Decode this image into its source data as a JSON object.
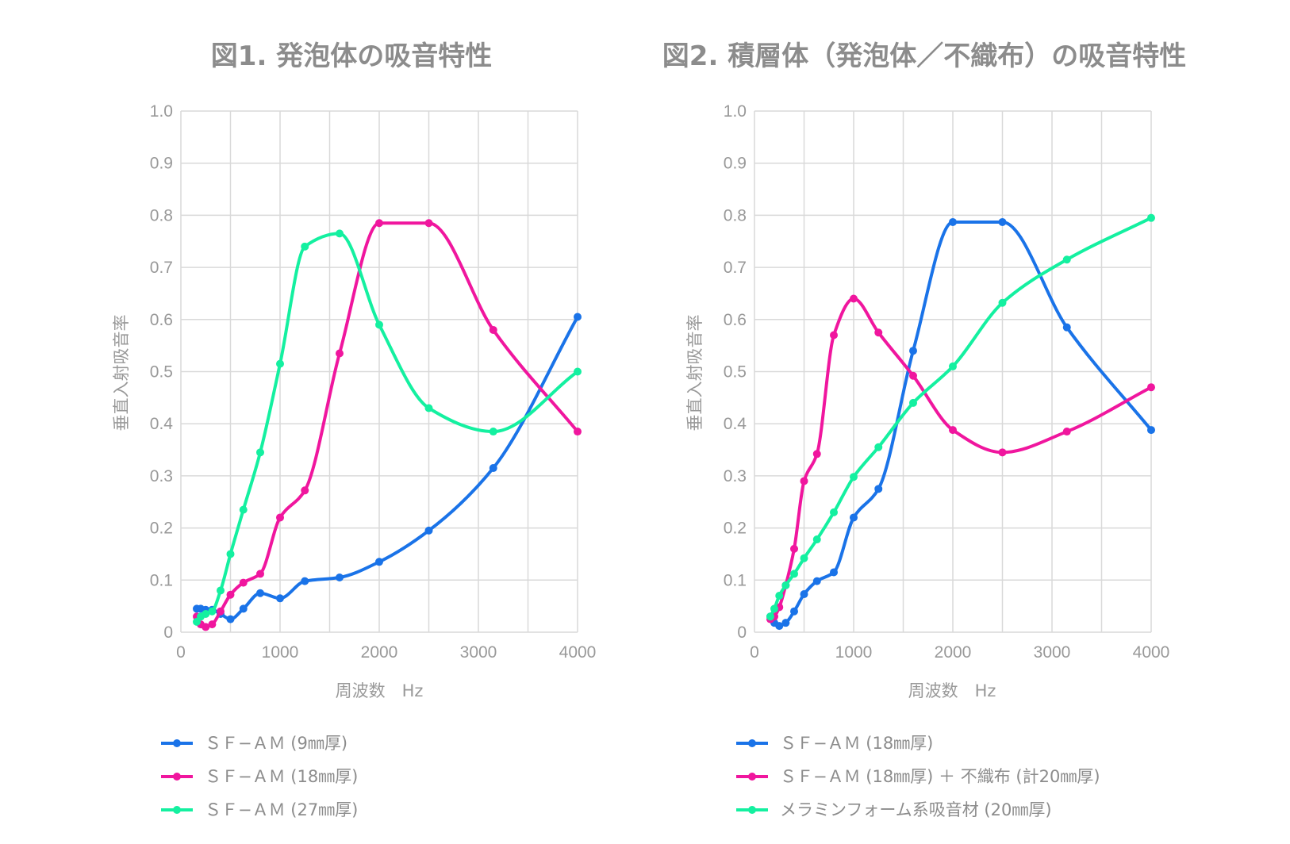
{
  "chart_data": [
    {
      "type": "line",
      "title": "図1. 発泡体の吸音特性",
      "xlabel": "周波数　Hz",
      "ylabel": "垂直入射吸音率",
      "xlim": [
        0,
        4000
      ],
      "ylim": [
        0,
        1.0
      ],
      "xticks": [
        "0",
        "1000",
        "2000",
        "3000",
        "4000"
      ],
      "yticks": [
        "0",
        "0.1",
        "0.2",
        "0.3",
        "0.4",
        "0.5",
        "0.6",
        "0.7",
        "0.8",
        "0.9",
        "1.0"
      ],
      "grid": true,
      "legend_position": "bottom",
      "series": [
        {
          "name": "ＳＦ−ＡＭ (9㎜厚)",
          "color": "#1a73e8",
          "x": [
            160,
            200,
            250,
            315,
            400,
            500,
            630,
            800,
            1000,
            1250,
            1600,
            2000,
            2500,
            3150,
            4000
          ],
          "y": [
            0.045,
            0.045,
            0.043,
            0.043,
            0.035,
            0.025,
            0.045,
            0.075,
            0.065,
            0.098,
            0.105,
            0.135,
            0.195,
            0.315,
            0.605
          ]
        },
        {
          "name": "ＳＦ−ＡＭ (18㎜厚)",
          "color": "#f0169e",
          "x": [
            160,
            200,
            250,
            315,
            400,
            500,
            630,
            800,
            1000,
            1250,
            1600,
            2000,
            2500,
            3150,
            4000
          ],
          "y": [
            0.03,
            0.015,
            0.01,
            0.015,
            0.04,
            0.072,
            0.095,
            0.112,
            0.22,
            0.272,
            0.535,
            0.785,
            0.785,
            0.58,
            0.385
          ]
        },
        {
          "name": "ＳＦ−ＡＭ (27㎜厚)",
          "color": "#14f0a0",
          "x": [
            160,
            200,
            250,
            315,
            400,
            500,
            630,
            800,
            1000,
            1250,
            1600,
            2000,
            2500,
            3150,
            4000
          ],
          "y": [
            0.02,
            0.03,
            0.035,
            0.04,
            0.08,
            0.15,
            0.235,
            0.345,
            0.515,
            0.74,
            0.765,
            0.59,
            0.43,
            0.385,
            0.5
          ]
        }
      ]
    },
    {
      "type": "line",
      "title": "図2. 積層体（発泡体／不織布）の吸音特性",
      "xlabel": "周波数　Hz",
      "ylabel": "垂直入射吸音率",
      "xlim": [
        0,
        4000
      ],
      "ylim": [
        0,
        1.0
      ],
      "xticks": [
        "0",
        "1000",
        "2000",
        "3000",
        "4000"
      ],
      "yticks": [
        "0",
        "0.1",
        "0.2",
        "0.3",
        "0.4",
        "0.5",
        "0.6",
        "0.7",
        "0.8",
        "0.9",
        "1.0"
      ],
      "grid": true,
      "legend_position": "bottom",
      "series": [
        {
          "name": "ＳＦ−ＡＭ (18㎜厚)",
          "color": "#1a73e8",
          "x": [
            160,
            200,
            250,
            315,
            400,
            500,
            630,
            800,
            1000,
            1250,
            1600,
            2000,
            2500,
            3150,
            4000
          ],
          "y": [
            0.03,
            0.018,
            0.012,
            0.018,
            0.04,
            0.073,
            0.098,
            0.115,
            0.22,
            0.275,
            0.54,
            0.787,
            0.787,
            0.585,
            0.388
          ]
        },
        {
          "name": "ＳＦ−ＡＭ (18㎜厚) ＋ 不織布 (計20㎜厚)",
          "color": "#f0169e",
          "x": [
            160,
            200,
            250,
            315,
            400,
            500,
            630,
            800,
            1000,
            1250,
            1600,
            2000,
            2500,
            3150,
            4000
          ],
          "y": [
            0.025,
            0.03,
            0.048,
            0.09,
            0.16,
            0.29,
            0.342,
            0.57,
            0.64,
            0.575,
            0.492,
            0.388,
            0.345,
            0.385,
            0.47
          ]
        },
        {
          "name": "メラミンフォーム系吸音材 (20㎜厚)",
          "color": "#14f0a0",
          "x": [
            160,
            200,
            250,
            315,
            400,
            500,
            630,
            800,
            1000,
            1250,
            1600,
            2000,
            2500,
            3150,
            4000
          ],
          "y": [
            0.03,
            0.045,
            0.07,
            0.09,
            0.112,
            0.142,
            0.178,
            0.23,
            0.298,
            0.355,
            0.44,
            0.51,
            0.632,
            0.715,
            0.795
          ]
        }
      ]
    }
  ]
}
